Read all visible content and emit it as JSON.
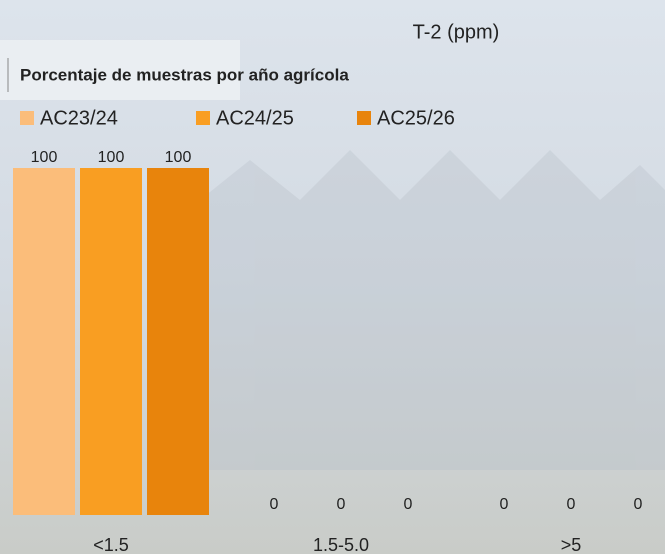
{
  "chart_data": {
    "type": "bar",
    "title": "T-2 (ppm)",
    "subtitle": "Porcentaje de muestras por año agrícola",
    "categories": [
      "<1.5",
      "1.5-5.0",
      ">5"
    ],
    "series": [
      {
        "name": "AC23/24",
        "color": "#fbbd7a",
        "values": [
          100,
          0,
          0
        ]
      },
      {
        "name": "AC24/25",
        "color": "#f99e22",
        "values": [
          100,
          0,
          0
        ]
      },
      {
        "name": "AC25/26",
        "color": "#e8840c",
        "values": [
          100,
          0,
          0
        ]
      }
    ]
  }
}
